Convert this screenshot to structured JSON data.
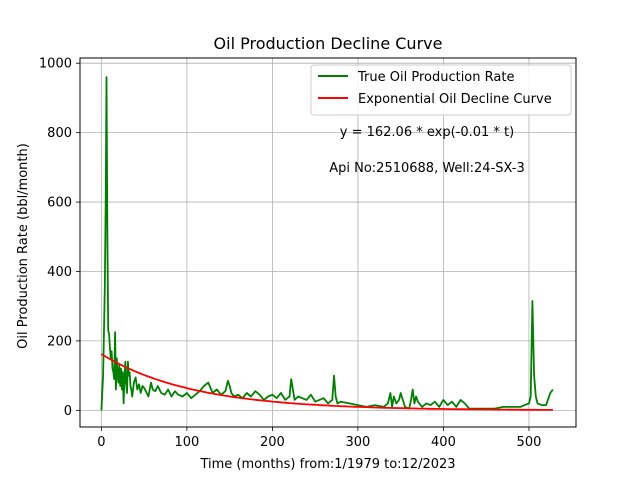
{
  "chart_data": {
    "type": "line",
    "title": "Oil Production Decline Curve",
    "xlabel": "Time (months) from:1/1979 to:12/2023",
    "ylabel": "Oil Production Rate (bbl/month)",
    "xlim": [
      -25,
      555
    ],
    "ylim": [
      -48,
      1015
    ],
    "xticks": [
      0,
      100,
      200,
      300,
      400,
      500
    ],
    "yticks": [
      0,
      200,
      400,
      600,
      800,
      1000
    ],
    "grid": true,
    "legend_position": "top-right",
    "annotations": [
      "y = 162.06 * exp(-0.01 * t)",
      "Api No:2510688, Well:24-SX-3"
    ],
    "series": [
      {
        "name": "True Oil Production Rate",
        "color": "#008000",
        "x": [
          0,
          2,
          4,
          5,
          6,
          7,
          8,
          9,
          10,
          11,
          12,
          13,
          14,
          15,
          16,
          17,
          18,
          19,
          20,
          21,
          22,
          23,
          24,
          25,
          26,
          27,
          28,
          29,
          30,
          31,
          32,
          33,
          34,
          35,
          36,
          38,
          40,
          42,
          44,
          46,
          48,
          50,
          52,
          55,
          58,
          60,
          63,
          66,
          70,
          74,
          78,
          82,
          86,
          90,
          95,
          100,
          105,
          110,
          115,
          120,
          125,
          130,
          135,
          140,
          145,
          148,
          150,
          152,
          155,
          160,
          165,
          170,
          175,
          180,
          185,
          190,
          195,
          200,
          205,
          210,
          215,
          220,
          222,
          224,
          226,
          230,
          235,
          240,
          245,
          250,
          255,
          260,
          265,
          270,
          272,
          274,
          276,
          280,
          290,
          300,
          310,
          320,
          330,
          335,
          338,
          340,
          342,
          345,
          348,
          350,
          355,
          360,
          362,
          364,
          366,
          368,
          370,
          375,
          380,
          385,
          390,
          395,
          400,
          405,
          410,
          415,
          420,
          425,
          430,
          440,
          450,
          460,
          470,
          480,
          490,
          495,
          500,
          502,
          504,
          506,
          508,
          510,
          515,
          520,
          525,
          528
        ],
        "y": [
          0,
          100,
          350,
          600,
          960,
          500,
          230,
          220,
          180,
          150,
          170,
          120,
          110,
          90,
          225,
          60,
          150,
          100,
          80,
          130,
          70,
          120,
          60,
          110,
          20,
          90,
          140,
          80,
          50,
          140,
          100,
          110,
          70,
          60,
          40,
          80,
          95,
          60,
          75,
          50,
          70,
          65,
          55,
          40,
          80,
          60,
          55,
          70,
          50,
          45,
          60,
          40,
          55,
          45,
          40,
          50,
          35,
          45,
          55,
          70,
          80,
          50,
          60,
          45,
          55,
          85,
          70,
          50,
          40,
          45,
          35,
          50,
          40,
          55,
          45,
          30,
          40,
          45,
          35,
          50,
          30,
          40,
          90,
          60,
          30,
          40,
          35,
          30,
          45,
          25,
          30,
          35,
          20,
          30,
          100,
          40,
          20,
          25,
          20,
          15,
          10,
          15,
          10,
          20,
          50,
          10,
          40,
          20,
          30,
          50,
          10,
          5,
          30,
          60,
          20,
          40,
          25,
          10,
          20,
          15,
          25,
          10,
          30,
          15,
          25,
          10,
          30,
          20,
          5,
          5,
          5,
          5,
          10,
          10,
          10,
          15,
          20,
          40,
          315,
          100,
          40,
          20,
          15,
          15,
          50,
          60
        ]
      },
      {
        "name": "Exponential Oil Decline Curve",
        "color": "#ff0000",
        "model": {
          "a": 162.06,
          "b": 0.0093
        },
        "x_range": [
          0,
          528
        ]
      }
    ]
  }
}
